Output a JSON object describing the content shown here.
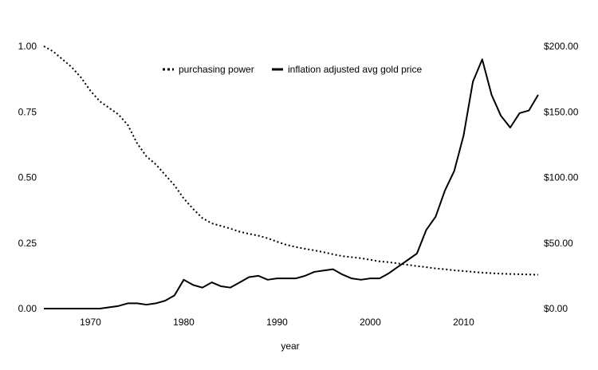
{
  "chart_data": {
    "type": "line",
    "title": "",
    "xlabel": "year",
    "ylabel_left": "",
    "ylabel_right": "",
    "xlim": [
      1965,
      2018
    ],
    "ylim_left": [
      0,
      1
    ],
    "ylim_right": [
      0,
      200
    ],
    "x_ticks": [
      "1970",
      "1980",
      "1990",
      "2000",
      "2010"
    ],
    "y_left_ticks": [
      "0.00",
      "0.25",
      "0.50",
      "0.75",
      "1.00"
    ],
    "y_right_ticks": [
      "$0.00",
      "$50.00",
      "$100.00",
      "$150.00",
      "$200.00"
    ],
    "grid": false,
    "legend_position": "top-center",
    "series": [
      {
        "name": "purchasing power",
        "axis": "left",
        "style": "dotted",
        "x": [
          1965,
          1966,
          1967,
          1968,
          1969,
          1970,
          1971,
          1972,
          1973,
          1974,
          1975,
          1976,
          1977,
          1978,
          1979,
          1980,
          1981,
          1982,
          1983,
          1984,
          1985,
          1986,
          1987,
          1988,
          1989,
          1990,
          1991,
          1992,
          1993,
          1994,
          1995,
          1996,
          1997,
          1998,
          1999,
          2000,
          2001,
          2002,
          2003,
          2004,
          2005,
          2006,
          2007,
          2008,
          2009,
          2010,
          2011,
          2012,
          2013,
          2014,
          2015,
          2016,
          2017,
          2018
        ],
        "values": [
          1.0,
          0.98,
          0.95,
          0.92,
          0.88,
          0.83,
          0.79,
          0.765,
          0.74,
          0.7,
          0.63,
          0.58,
          0.55,
          0.51,
          0.47,
          0.42,
          0.38,
          0.345,
          0.325,
          0.315,
          0.305,
          0.293,
          0.285,
          0.278,
          0.268,
          0.255,
          0.243,
          0.235,
          0.228,
          0.222,
          0.215,
          0.207,
          0.2,
          0.196,
          0.192,
          0.186,
          0.18,
          0.177,
          0.172,
          0.167,
          0.162,
          0.158,
          0.153,
          0.15,
          0.146,
          0.143,
          0.14,
          0.137,
          0.135,
          0.133,
          0.132,
          0.131,
          0.13,
          0.129
        ]
      },
      {
        "name": "inflation adjusted avg gold price",
        "axis": "right",
        "style": "solid",
        "x": [
          1965,
          1966,
          1967,
          1968,
          1969,
          1970,
          1971,
          1972,
          1973,
          1974,
          1975,
          1976,
          1977,
          1978,
          1979,
          1980,
          1981,
          1982,
          1983,
          1984,
          1985,
          1986,
          1987,
          1988,
          1989,
          1990,
          1991,
          1992,
          1993,
          1994,
          1995,
          1996,
          1997,
          1998,
          1999,
          2000,
          2001,
          2002,
          2003,
          2004,
          2005,
          2006,
          2007,
          2008,
          2009,
          2010,
          2011,
          2012,
          2013,
          2014,
          2015,
          2016,
          2017,
          2018
        ],
        "values": [
          0,
          0,
          0,
          0,
          0,
          0,
          0,
          1,
          2,
          4,
          4,
          3,
          4,
          6,
          10,
          22,
          18,
          16,
          20,
          17,
          16,
          20,
          24,
          25,
          22,
          23,
          23,
          23,
          25,
          28,
          29,
          30,
          26,
          23,
          22,
          23,
          23,
          27,
          32,
          37,
          42,
          60,
          70,
          90,
          105,
          132,
          173,
          190,
          163,
          147,
          138,
          149,
          151,
          163
        ]
      }
    ]
  }
}
